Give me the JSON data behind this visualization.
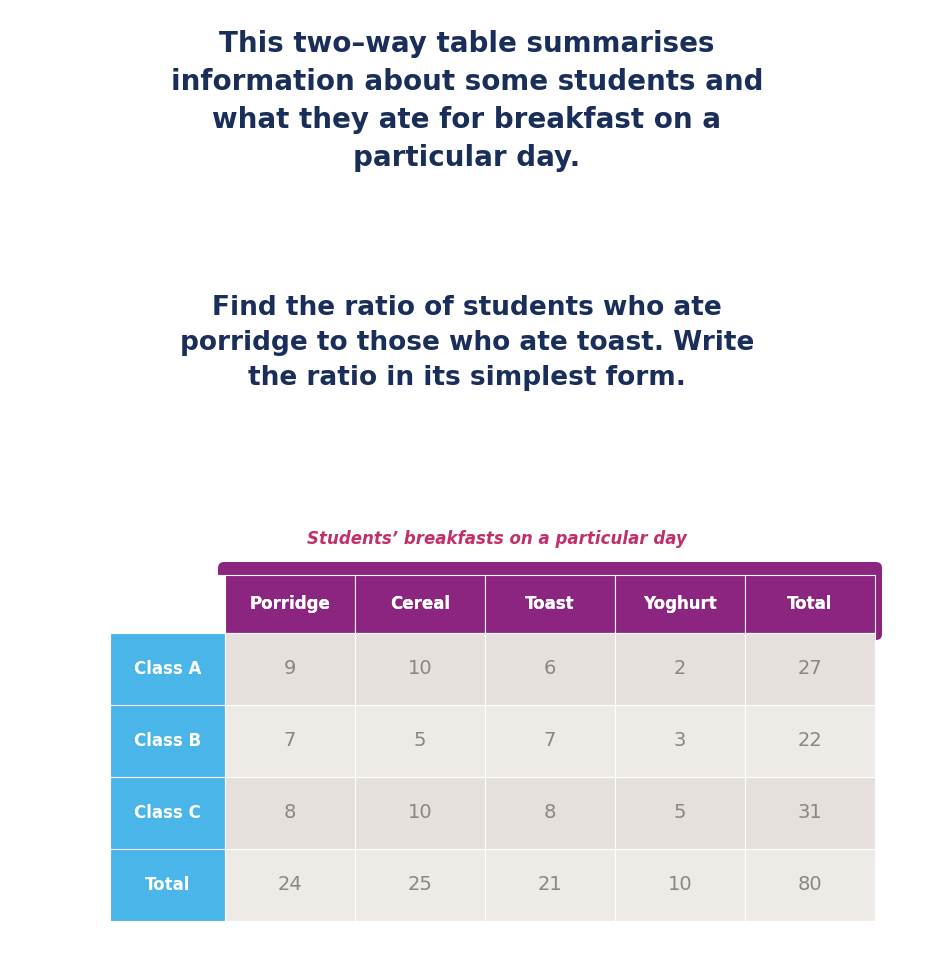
{
  "title_text": "This two–way table summarises\ninformation about some students and\nwhat they ate for breakfast on a\nparticular day.",
  "question_text": "Find the ratio of students who ate\nporridge to those who ate toast. Write\nthe ratio in its simplest form.",
  "table_title": "Students’ breakfasts on a particular day",
  "col_headers": [
    "Porridge",
    "Cereal",
    "Toast",
    "Yoghurt",
    "Total"
  ],
  "row_headers": [
    "Class A",
    "Class B",
    "Class C",
    "Total"
  ],
  "table_data": [
    [
      9,
      10,
      6,
      2,
      27
    ],
    [
      7,
      5,
      7,
      3,
      22
    ],
    [
      8,
      10,
      8,
      5,
      31
    ],
    [
      24,
      25,
      21,
      10,
      80
    ]
  ],
  "bg_color": "#ffffff",
  "title_color": "#1a2e5a",
  "question_color": "#1a2e5a",
  "table_title_color": "#c0306a",
  "header_bg_color": "#8b2580",
  "header_text_color": "#ffffff",
  "row_header_bg_color": "#4ab5e8",
  "row_header_text_color": "#ffffff",
  "cell_bg_even": "#e5e0db",
  "cell_bg_odd": "#eeebe7",
  "data_text_color": "#888880",
  "title_fontsize": 20,
  "question_fontsize": 19,
  "table_title_fontsize": 12,
  "header_fontsize": 12,
  "row_header_fontsize": 12,
  "data_fontsize": 14
}
